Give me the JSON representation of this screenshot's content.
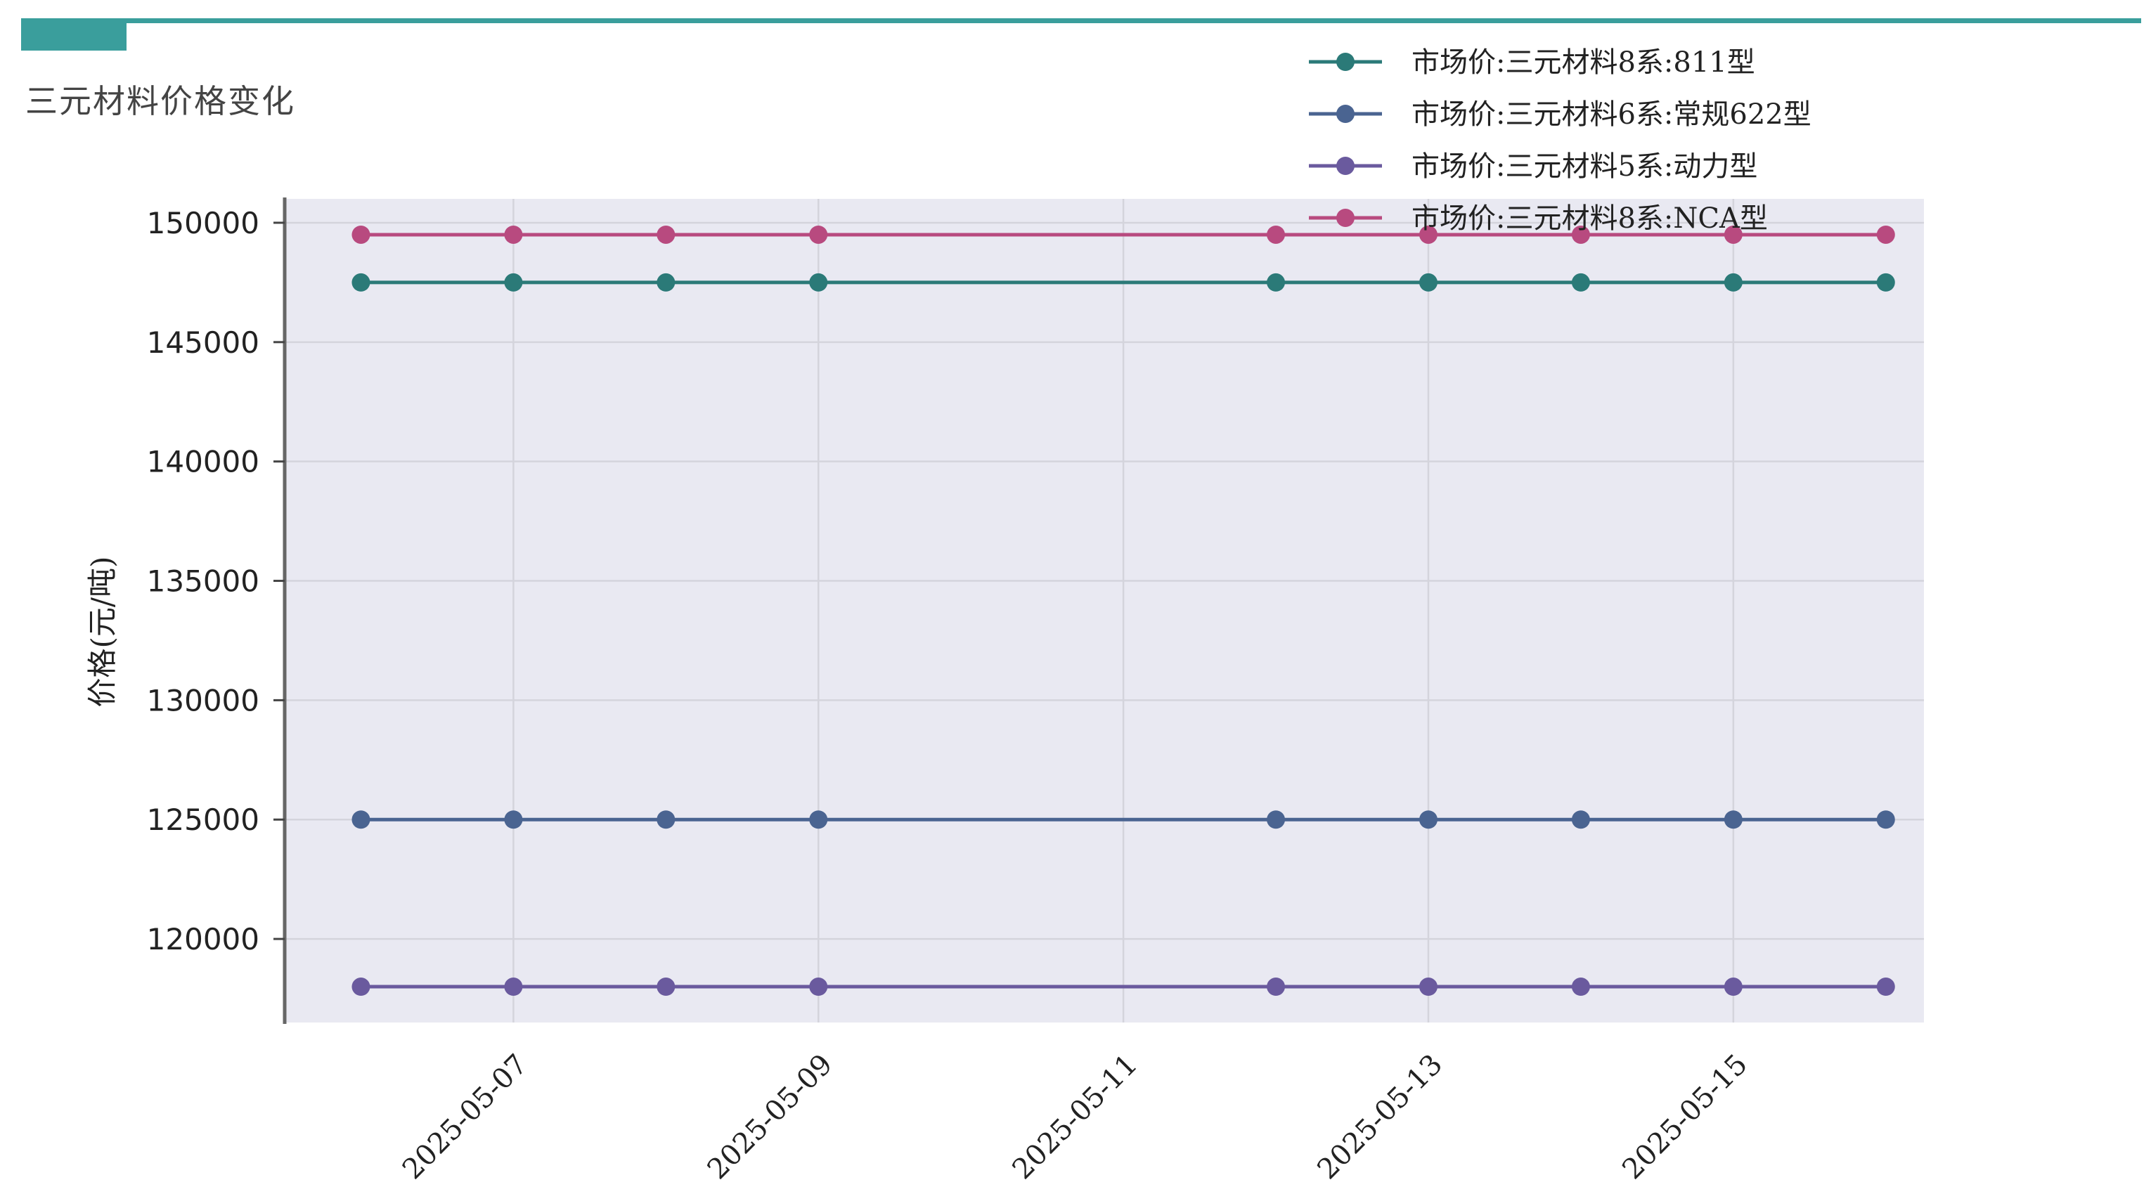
{
  "page": {
    "title": "三元材料价格变化"
  },
  "chart_data": {
    "type": "line",
    "title": "",
    "xlabel": "",
    "ylabel": "价格(元/吨)",
    "x": [
      "2025-05-06",
      "2025-05-07",
      "2025-05-08",
      "2025-05-09",
      "2025-05-12",
      "2025-05-13",
      "2025-05-14",
      "2025-05-15",
      "2025-05-16"
    ],
    "x_range": [
      "2025-05-05.5",
      "2025-05-16.25"
    ],
    "x_ticks": [
      "2025-05-07",
      "2025-05-09",
      "2025-05-11",
      "2025-05-13",
      "2025-05-15"
    ],
    "ylim": [
      116500,
      151000
    ],
    "y_ticks": [
      120000,
      125000,
      130000,
      135000,
      140000,
      145000,
      150000
    ],
    "grid": true,
    "legend_position": "top-right",
    "series": [
      {
        "name": "市场价:三元材料8系:811型",
        "color": "#2b7a78",
        "values": [
          147500,
          147500,
          147500,
          147500,
          147500,
          147500,
          147500,
          147500,
          147500
        ]
      },
      {
        "name": "市场价:三元材料6系:常规622型",
        "color": "#4a6491",
        "values": [
          125000,
          125000,
          125000,
          125000,
          125000,
          125000,
          125000,
          125000,
          125000
        ]
      },
      {
        "name": "市场价:三元材料5系:动力型",
        "color": "#6a5a9e",
        "values": [
          118000,
          118000,
          118000,
          118000,
          118000,
          118000,
          118000,
          118000,
          118000
        ]
      },
      {
        "name": "市场价:三元材料8系:NCA型",
        "color": "#b84a7f",
        "values": [
          149500,
          149500,
          149500,
          149500,
          149500,
          149500,
          149500,
          149500,
          149500
        ]
      }
    ]
  }
}
